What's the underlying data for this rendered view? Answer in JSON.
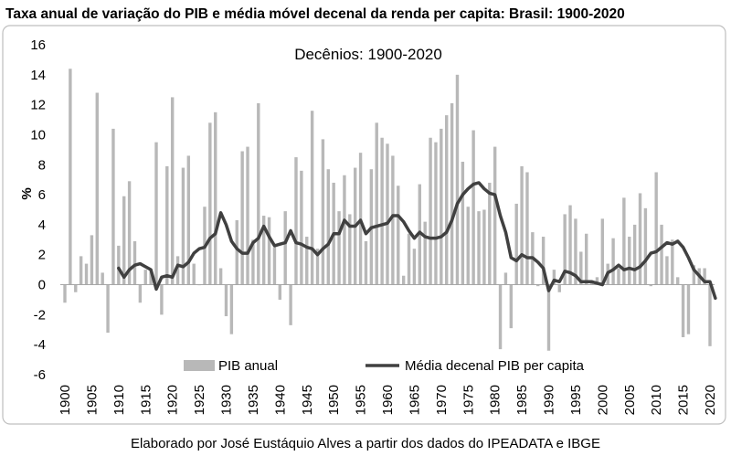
{
  "chart_data": {
    "type": "bar",
    "title": "Taxa anual de variação do PIB e média móvel decenal da renda per capita: Brasil: 1900-2020",
    "subtitle": "Decênios: 1900-2020",
    "caption": "Elaborado por José Eustáquio Alves a partir dos dados do IPEADATA e IBGE",
    "ylabel": "%",
    "ylim": [
      -6,
      16
    ],
    "yticks": [
      "16",
      "14",
      "12",
      "10",
      "8",
      "6",
      "4",
      "2",
      "0",
      "-2",
      "-4",
      "-6"
    ],
    "xticks": [
      "1900",
      "1905",
      "1910",
      "1915",
      "1920",
      "1925",
      "1930",
      "1935",
      "1940",
      "1945",
      "1950",
      "1955",
      "1960",
      "1965",
      "1970",
      "1975",
      "1980",
      "1985",
      "1990",
      "1995",
      "2000",
      "2005",
      "2010",
      "2015",
      "2020"
    ],
    "x_start": 1900,
    "x_end": 2020,
    "legend_placement": "bottom",
    "colors": {
      "bars": "#b8b8b8",
      "line": "#404040",
      "frame": "#bfbfbf"
    },
    "series": [
      {
        "name": "PIB anual",
        "type": "bar",
        "values": [
          -1.2,
          14.4,
          -0.5,
          1.9,
          1.4,
          3.3,
          12.8,
          0.8,
          -3.2,
          10.4,
          2.6,
          5.9,
          6.9,
          2.9,
          -1.2,
          1.0,
          1.0,
          9.5,
          -2.0,
          7.9,
          12.5,
          1.9,
          7.8,
          8.6,
          1.4,
          0.0,
          5.2,
          10.8,
          11.5,
          1.1,
          -2.1,
          -3.3,
          4.3,
          8.9,
          9.2,
          3.0,
          12.1,
          4.6,
          4.5,
          2.5,
          -1.0,
          4.9,
          -2.7,
          8.5,
          7.6,
          3.2,
          11.6,
          2.4,
          9.7,
          7.7,
          6.8,
          4.9,
          7.3,
          4.7,
          7.8,
          8.8,
          2.9,
          7.7,
          10.8,
          9.8,
          9.4,
          8.6,
          6.6,
          0.6,
          3.4,
          2.4,
          6.7,
          4.2,
          9.8,
          9.5,
          10.4,
          11.3,
          12.1,
          14.0,
          8.2,
          5.2,
          10.3,
          4.9,
          5.0,
          6.8,
          9.2,
          -4.3,
          0.8,
          -2.9,
          5.4,
          7.9,
          7.5,
          3.5,
          -0.1,
          3.2,
          -4.4,
          1.0,
          -0.5,
          4.7,
          5.3,
          4.4,
          2.2,
          3.4,
          0.3,
          0.5,
          4.4,
          1.4,
          3.1,
          1.1,
          5.8,
          3.2,
          4.0,
          6.1,
          5.1,
          -0.1,
          7.5,
          4.0,
          1.9,
          3.0,
          0.5,
          -3.5,
          -3.3,
          1.3,
          1.1,
          1.1,
          -4.1
        ]
      },
      {
        "name": "Média decenal PIB per capita",
        "type": "line",
        "values": [
          null,
          null,
          null,
          null,
          null,
          null,
          null,
          null,
          null,
          null,
          1.1,
          0.5,
          1.0,
          1.3,
          1.4,
          1.2,
          1.0,
          -0.3,
          0.5,
          0.6,
          0.5,
          1.3,
          1.2,
          1.5,
          2.1,
          2.4,
          2.5,
          3.1,
          3.4,
          4.8,
          4.0,
          2.9,
          2.4,
          2.1,
          2.1,
          2.8,
          3.1,
          3.9,
          3.2,
          2.6,
          2.7,
          2.8,
          3.6,
          2.8,
          2.7,
          2.5,
          2.4,
          2.0,
          2.4,
          2.7,
          3.4,
          3.4,
          4.3,
          3.9,
          3.9,
          4.3,
          3.4,
          3.8,
          3.9,
          4.0,
          4.1,
          4.6,
          4.6,
          4.2,
          3.6,
          3.1,
          3.5,
          3.2,
          3.1,
          3.1,
          3.2,
          3.5,
          4.3,
          5.4,
          6.0,
          6.4,
          6.7,
          6.8,
          6.4,
          6.1,
          6.0,
          4.6,
          3.5,
          1.8,
          1.6,
          2.0,
          1.8,
          1.8,
          1.5,
          1.1,
          -0.4,
          0.3,
          0.2,
          0.9,
          0.8,
          0.6,
          0.2,
          0.2,
          0.2,
          0.1,
          0.0,
          0.8,
          1.0,
          1.3,
          1.0,
          1.1,
          1.0,
          1.2,
          1.6,
          2.1,
          2.2,
          2.5,
          2.8,
          2.7,
          2.9,
          2.5,
          1.8,
          1.0,
          0.6,
          0.2,
          0.2,
          -0.9
        ]
      }
    ]
  }
}
